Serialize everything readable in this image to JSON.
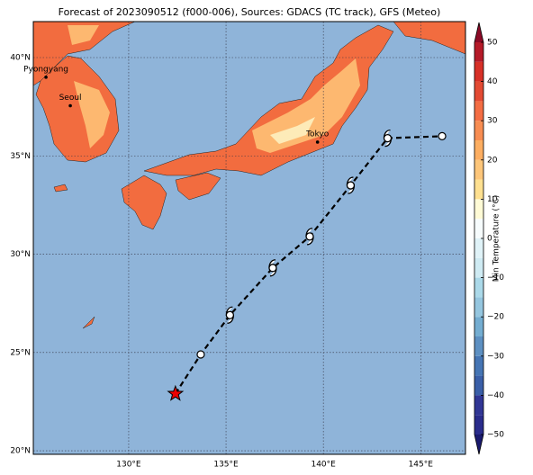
{
  "title": "Forecast of 2023090512 (f000-006), Sources: GDACS (TC track), GFS (Meteo)",
  "xlim": [
    125.1,
    147.3
  ],
  "ylim": [
    19.82,
    41.83
  ],
  "xticks": [
    {
      "value": 130,
      "label": "130°E"
    },
    {
      "value": 135,
      "label": "135°E"
    },
    {
      "value": 140,
      "label": "140°E"
    },
    {
      "value": 145,
      "label": "145°E"
    }
  ],
  "yticks": [
    {
      "value": 20,
      "label": "20°N"
    },
    {
      "value": 25,
      "label": "25°N"
    },
    {
      "value": 30,
      "label": "30°N"
    },
    {
      "value": 35,
      "label": "35°N"
    },
    {
      "value": 40,
      "label": "40°N"
    }
  ],
  "cities": [
    {
      "name": "Pyongyang",
      "lon": 125.75,
      "lat": 39.0
    },
    {
      "name": "Seoul",
      "lon": 127.0,
      "lat": 37.55
    },
    {
      "name": "Tokyo",
      "lon": 139.7,
      "lat": 35.7
    }
  ],
  "track": {
    "lon": [
      132.4,
      133.7,
      135.2,
      137.4,
      139.3,
      141.4,
      143.3,
      146.1
    ],
    "lat": [
      22.9,
      24.9,
      26.9,
      29.3,
      30.9,
      33.5,
      35.9,
      36.0
    ],
    "markers": [
      "star",
      "circle",
      "cyclone",
      "cyclone",
      "cyclone",
      "cyclone",
      "cyclone",
      "circle"
    ]
  },
  "colorbar": {
    "label": "Min Temperature (°C)",
    "lim": [
      -50,
      50
    ],
    "ticks": [
      {
        "value": -50,
        "label": "−50"
      },
      {
        "value": -40,
        "label": "−40"
      },
      {
        "value": -30,
        "label": "−30"
      },
      {
        "value": -20,
        "label": "−20"
      },
      {
        "value": -10,
        "label": "−10"
      },
      0,
      10,
      20,
      30,
      40,
      50
    ],
    "levels": [
      -50,
      -45,
      -40,
      -35,
      -30,
      -25,
      -20,
      -15,
      -10,
      -5,
      0,
      5,
      10,
      15,
      20,
      25,
      30,
      35,
      40,
      45,
      50
    ],
    "colors": [
      "#2a2c8c",
      "#313695",
      "#3a5fa8",
      "#4575b4",
      "#5d90c2",
      "#74add1",
      "#95c6df",
      "#abd9e9",
      "#cfebf3",
      "#e0f3f8",
      "#f7fcfd",
      "#fffbd6",
      "#fee090",
      "#fdc67a",
      "#fdae61",
      "#f88d52",
      "#f46d43",
      "#e34a33",
      "#d73027",
      "#b51a28"
    ],
    "under": "#1a1a6e",
    "over": "#8b0a26"
  }
}
